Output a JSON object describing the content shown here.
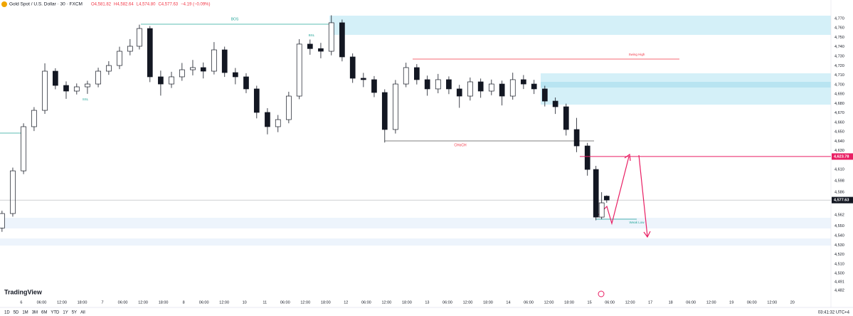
{
  "chart_data": {
    "type": "candlestick",
    "title": "Gold Spot / U.S. Dollar · 30 · FXCM",
    "ohlc_labels": [
      "O4,581.82",
      "H4,582.64",
      "L4,574.80",
      "C4,577.63",
      "−4.19 (−0.09%)"
    ],
    "up_color": "#ffffff",
    "down_color": "#131722",
    "x": [
      -0.95,
      -0.42,
      0.11,
      0.63,
      1.16,
      1.68,
      2.21,
      2.73,
      3.26,
      3.79,
      4.31,
      4.84,
      5.36,
      5.82,
      6.34,
      6.87,
      7.4,
      7.92,
      8.45,
      8.97,
      9.5,
      10.02,
      10.55,
      11.08,
      11.6,
      12.13,
      12.65,
      13.18,
      13.7,
      14.23,
      14.76,
      15.28,
      15.81,
      16.33,
      16.86,
      17.39,
      17.91,
      18.44,
      18.96,
      19.49,
      20.01,
      20.54,
      21.07,
      21.59,
      22.12,
      22.64,
      23.17,
      23.69,
      24.22,
      24.75,
      25.27,
      25.8,
      26.32,
      26.85,
      27.37,
      27.9,
      28.32,
      28.6,
      28.85
    ],
    "open": [
      4548.0,
      4563.4,
      4608.6,
      4655.4,
      4672.7,
      4714.2,
      4699.1,
      4693.1,
      4697.6,
      4700.6,
      4714.2,
      4720.2,
      4735.3,
      4740.6,
      4759.4,
      4708.2,
      4700.6,
      4708.2,
      4715.7,
      4718.0,
      4714.2,
      4736.8,
      4712.7,
      4708.2,
      4695.4,
      4670.5,
      4655.4,
      4662.9,
      4687.8,
      4742.9,
      4738.1,
      4735.3,
      4765.5,
      4729.3,
      4706.7,
      4705.2,
      4691.6,
      4652.4,
      4700.6,
      4718.0,
      4705.2,
      4695.4,
      4705.2,
      4695.4,
      4687.8,
      4702.9,
      4693.1,
      4700.6,
      4687.8,
      4705.2,
      4700.6,
      4695.4,
      4682.5,
      4676.5,
      4652.4,
      4635.0,
      4610.1,
      4559.6,
      4581.82
    ],
    "high": [
      4566.4,
      4612.0,
      4659.0,
      4676.1,
      4722.5,
      4717.3,
      4703.4,
      4701.2,
      4704.0,
      4717.9,
      4724.8,
      4740.1,
      4748.2,
      4763.5,
      4762.0,
      4714.8,
      4713.5,
      4722.9,
      4726.1,
      4723.4,
      4745.0,
      4740.2,
      4717.6,
      4712.0,
      4698.8,
      4675.0,
      4667.8,
      4692.4,
      4748.1,
      4747.7,
      4744.2,
      4773.4,
      4768.9,
      4733.0,
      4712.4,
      4709.0,
      4695.0,
      4704.9,
      4723.2,
      4721.7,
      4709.5,
      4711.3,
      4708.6,
      4699.7,
      4707.5,
      4706.4,
      4705.3,
      4704.2,
      4712.6,
      4710.1,
      4705.0,
      4698.7,
      4686.3,
      4679.8,
      4664.7,
      4638.2,
      4613.9,
      4586.0,
      4582.64
    ],
    "low": [
      4544.0,
      4560.1,
      4605.2,
      4650.8,
      4669.0,
      4695.0,
      4684.9,
      4689.5,
      4690.2,
      4697.1,
      4710.3,
      4716.4,
      4731.0,
      4737.2,
      4702.6,
      4688.3,
      4696.4,
      4704.0,
      4709.8,
      4706.5,
      4710.7,
      4708.1,
      4700.3,
      4690.9,
      4664.2,
      4647.3,
      4649.6,
      4659.0,
      4684.5,
      4731.6,
      4727.9,
      4731.0,
      4724.6,
      4701.8,
      4697.3,
      4686.7,
      4638.6,
      4648.1,
      4697.2,
      4700.1,
      4688.2,
      4690.8,
      4689.9,
      4675.4,
      4683.1,
      4686.0,
      4688.7,
      4677.9,
      4684.0,
      4695.3,
      4690.0,
      4676.8,
      4668.9,
      4646.0,
      4628.4,
      4603.5,
      4556.2,
      4557.4,
      4574.8
    ],
    "close": [
      4563.4,
      4608.6,
      4655.4,
      4672.7,
      4714.2,
      4699.1,
      4693.1,
      4697.6,
      4700.6,
      4714.2,
      4720.2,
      4735.3,
      4740.6,
      4759.4,
      4708.2,
      4700.6,
      4708.2,
      4715.7,
      4718.0,
      4714.2,
      4736.8,
      4712.7,
      4708.2,
      4695.4,
      4670.5,
      4655.4,
      4662.9,
      4687.8,
      4742.9,
      4738.1,
      4735.3,
      4765.5,
      4729.3,
      4706.7,
      4705.2,
      4691.6,
      4652.4,
      4700.6,
      4718.0,
      4705.2,
      4695.4,
      4705.2,
      4695.4,
      4687.8,
      4702.9,
      4693.1,
      4700.6,
      4687.8,
      4705.2,
      4700.6,
      4695.4,
      4682.5,
      4676.5,
      4652.4,
      4635.0,
      4610.1,
      4559.6,
      4574.7,
      4577.63
    ],
    "xlim": [
      -1.05,
      39.9
    ],
    "ylim": [
      4476.7,
      4789.6
    ],
    "xticks": [
      {
        "value": 0,
        "label": "6"
      },
      {
        "value": 1,
        "label": "06:00"
      },
      {
        "value": 2,
        "label": "12:00"
      },
      {
        "value": 3,
        "label": "18:00"
      },
      {
        "value": 4,
        "label": "7"
      },
      {
        "value": 5,
        "label": "06:00"
      },
      {
        "value": 6,
        "label": "12:00"
      },
      {
        "value": 7,
        "label": "18:00"
      },
      {
        "value": 8,
        "label": "8"
      },
      {
        "value": 9,
        "label": "06:00"
      },
      {
        "value": 10,
        "label": "12:00"
      },
      {
        "value": 11,
        "label": "10"
      },
      {
        "value": 12,
        "label": "11"
      },
      {
        "value": 13,
        "label": "06:00"
      },
      {
        "value": 14,
        "label": "12:00"
      },
      {
        "value": 15,
        "label": "18:00"
      },
      {
        "value": 16,
        "label": "12"
      },
      {
        "value": 17,
        "label": "06:00"
      },
      {
        "value": 18,
        "label": "12:00"
      },
      {
        "value": 19,
        "label": "18:00"
      },
      {
        "value": 20,
        "label": "13"
      },
      {
        "value": 21,
        "label": "06:00"
      },
      {
        "value": 22,
        "label": "12:00"
      },
      {
        "value": 23,
        "label": "18:00"
      },
      {
        "value": 24,
        "label": "14"
      },
      {
        "value": 25,
        "label": "06:00"
      },
      {
        "value": 26,
        "label": "12:00"
      },
      {
        "value": 27,
        "label": "18:00"
      },
      {
        "value": 28,
        "label": "15"
      },
      {
        "value": 29,
        "label": "06:00"
      },
      {
        "value": 30,
        "label": "12:00"
      },
      {
        "value": 31,
        "label": "17"
      },
      {
        "value": 32,
        "label": "18"
      },
      {
        "value": 33,
        "label": "06:00"
      },
      {
        "value": 34,
        "label": "12:00"
      },
      {
        "value": 35,
        "label": "19"
      },
      {
        "value": 36,
        "label": "06:00"
      },
      {
        "value": 37,
        "label": "12:00"
      },
      {
        "value": 38,
        "label": "20"
      }
    ],
    "yticks": [
      {
        "value": 4770,
        "label": "4,770"
      },
      {
        "value": 4760,
        "label": "4,760"
      },
      {
        "value": 4750,
        "label": "4,750"
      },
      {
        "value": 4740,
        "label": "4,740"
      },
      {
        "value": 4730,
        "label": "4,730"
      },
      {
        "value": 4720,
        "label": "4,720"
      },
      {
        "value": 4710,
        "label": "4,710"
      },
      {
        "value": 4700,
        "label": "4,700"
      },
      {
        "value": 4690,
        "label": "4,690"
      },
      {
        "value": 4680,
        "label": "4,680"
      },
      {
        "value": 4670,
        "label": "4,670"
      },
      {
        "value": 4660,
        "label": "4,660"
      },
      {
        "value": 4650,
        "label": "4,650"
      },
      {
        "value": 4640,
        "label": "4,640"
      },
      {
        "value": 4630,
        "label": "4,630"
      },
      {
        "value": 4610,
        "label": "4,610"
      },
      {
        "value": 4598,
        "label": "4,598"
      },
      {
        "value": 4586,
        "label": "4,586"
      },
      {
        "value": 4562,
        "label": "4,562"
      },
      {
        "value": 4550,
        "label": "4,550"
      },
      {
        "value": 4540,
        "label": "4,540"
      },
      {
        "value": 4530,
        "label": "4,530"
      },
      {
        "value": 4520,
        "label": "4,520"
      },
      {
        "value": 4510,
        "label": "4,510"
      },
      {
        "value": 4500,
        "label": "4,500"
      },
      {
        "value": 4491,
        "label": "4,491"
      },
      {
        "value": 4482,
        "label": "4,482"
      }
    ],
    "price_lines": [
      {
        "value": 4623.78,
        "label": "4,623.78",
        "color": "#e91e63"
      },
      {
        "value": 4577.63,
        "label": "4,577.63",
        "color": "#131722"
      }
    ],
    "grid": false,
    "annotations": [
      "BOS",
      "CHoCH",
      "Swing High",
      "Weak Low",
      "BSL",
      "SSL"
    ],
    "brand": "TradingView",
    "range_buttons": [
      "1D",
      "5D",
      "1M",
      "3M",
      "6M",
      "YTD",
      "1Y",
      "5Y",
      "All"
    ],
    "clock": "03:41:32 UTC+4"
  }
}
